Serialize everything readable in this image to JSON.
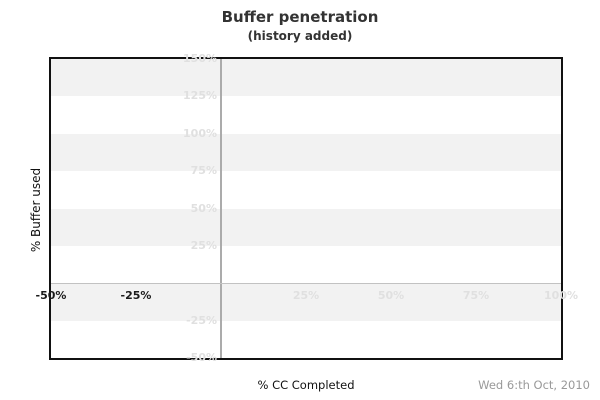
{
  "chart_data": {
    "type": "line",
    "title": "Buffer penetration",
    "subtitle": "(history added)",
    "xlabel": "% CC Completed",
    "ylabel": "% Buffer used",
    "footer_date": "Wed 6:th Oct, 2010",
    "xlim": [
      -50,
      100
    ],
    "ylim": [
      -50,
      150
    ],
    "x_ticks": [
      {
        "value": -50,
        "label": "-50%",
        "emphasis": true
      },
      {
        "value": -25,
        "label": "-25%",
        "emphasis": true
      },
      {
        "value": 25,
        "label": "25%",
        "emphasis": false
      },
      {
        "value": 50,
        "label": "50%",
        "emphasis": false
      },
      {
        "value": 75,
        "label": "75%",
        "emphasis": false
      },
      {
        "value": 100,
        "label": "100%",
        "emphasis": false
      }
    ],
    "y_ticks": [
      {
        "value": 150,
        "label": "150%"
      },
      {
        "value": 125,
        "label": "125%"
      },
      {
        "value": 100,
        "label": "100%"
      },
      {
        "value": 75,
        "label": "75%"
      },
      {
        "value": 50,
        "label": "50%"
      },
      {
        "value": 25,
        "label": "25%"
      },
      {
        "value": -25,
        "label": "-25%"
      },
      {
        "value": -50,
        "label": "-50%"
      }
    ],
    "shaded_y_bands": [
      [
        150,
        125
      ],
      [
        100,
        75
      ],
      [
        50,
        25
      ],
      [
        0,
        -25
      ]
    ],
    "zero_lines": {
      "vertical_at_x": 0,
      "horizontal_at_y": 0
    },
    "series": [],
    "grid": false,
    "legend": false,
    "colors": {
      "band": "#f2f2f2",
      "zero_line_vertical": "#ababab",
      "zero_line_horizontal": "#c2c2c2",
      "tick_light": "#e0e0e0",
      "tick_dark": "#1a1a1a",
      "frame": "#111111",
      "title": "#333333",
      "date": "#999999"
    }
  }
}
